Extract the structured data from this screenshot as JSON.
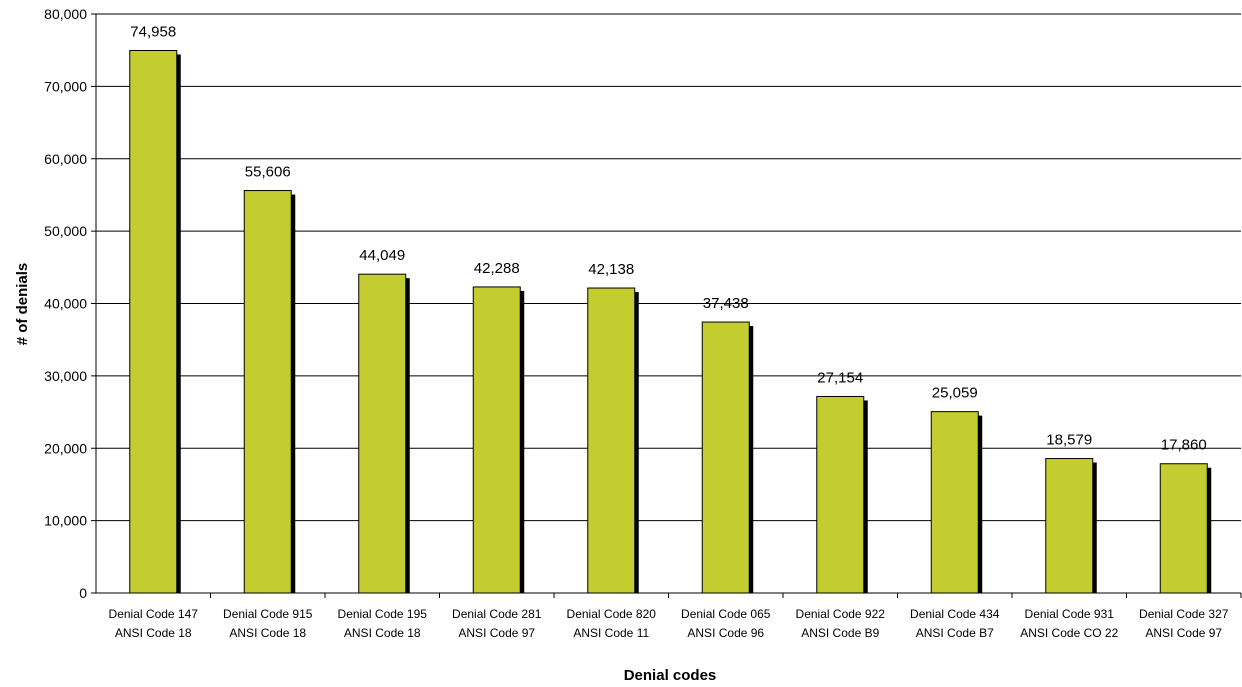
{
  "chart_data": {
    "type": "bar",
    "title": "",
    "xlabel": "Denial codes",
    "ylabel": "# of denials",
    "ylim": [
      0,
      80000
    ],
    "yticks": [
      0,
      10000,
      20000,
      30000,
      40000,
      50000,
      60000,
      70000,
      80000
    ],
    "ytick_labels": [
      "0",
      "10,000",
      "20,000",
      "30,000",
      "40,000",
      "50,000",
      "60,000",
      "70,000",
      "80,000"
    ],
    "grid": true,
    "categories": [
      [
        "Denial Code 147",
        "ANSI Code 18"
      ],
      [
        "Denial Code 915",
        "ANSI Code 18"
      ],
      [
        "Denial Code 195",
        "ANSI Code 18"
      ],
      [
        "Denial Code 281",
        "ANSI Code 97"
      ],
      [
        "Denial Code 820",
        "ANSI Code 11"
      ],
      [
        "Denial Code 065",
        "ANSI Code 96"
      ],
      [
        "Denial Code 922",
        "ANSI Code B9"
      ],
      [
        "Denial Code 434",
        "ANSI Code B7"
      ],
      [
        "Denial Code 931",
        "ANSI Code CO 22"
      ],
      [
        "Denial Code 327",
        "ANSI Code 97"
      ]
    ],
    "values": [
      74958,
      55606,
      44049,
      42288,
      42138,
      37438,
      27154,
      25059,
      18579,
      17860
    ],
    "data_labels": [
      "74,958",
      "55,606",
      "44,049",
      "42,288",
      "42,138",
      "37,438",
      "27,154",
      "25,059",
      "18,579",
      "17,860"
    ],
    "colors": {
      "bar": "#c3cd2f",
      "bar_stroke": "#000000",
      "shadow": "#000000",
      "grid": "#000000"
    }
  }
}
